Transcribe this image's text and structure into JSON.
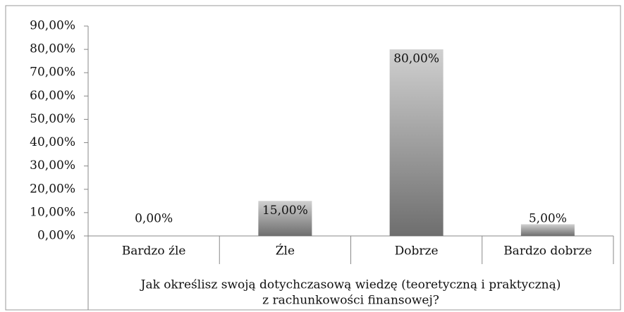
{
  "chart_data": {
    "type": "bar",
    "categories": [
      "Bardzo źle",
      "Źle",
      "Dobrze",
      "Bardzo dobrze"
    ],
    "values": [
      0,
      15,
      80,
      5
    ],
    "value_labels": [
      "0,00%",
      "15,00%",
      "80,00%",
      "5,00%"
    ],
    "xlabel": [
      "Jak określisz swoją dotychczasową wiedzę (teoretyczną i praktyczną)",
      "z rachunkowości finansowej?"
    ],
    "ylim": [
      0,
      90
    ],
    "yticks": [
      {
        "value": 0,
        "label": "0,00%"
      },
      {
        "value": 10,
        "label": "10,00%"
      },
      {
        "value": 20,
        "label": "20,00%"
      },
      {
        "value": 30,
        "label": "30,00%"
      },
      {
        "value": 40,
        "label": "40,00%"
      },
      {
        "value": 50,
        "label": "50,00%"
      },
      {
        "value": 60,
        "label": "60,00%"
      },
      {
        "value": 70,
        "label": "70,00%"
      },
      {
        "value": 80,
        "label": "80,00%"
      },
      {
        "value": 90,
        "label": "90,00%"
      }
    ],
    "color": "#9a9a9a",
    "grid": false
  }
}
